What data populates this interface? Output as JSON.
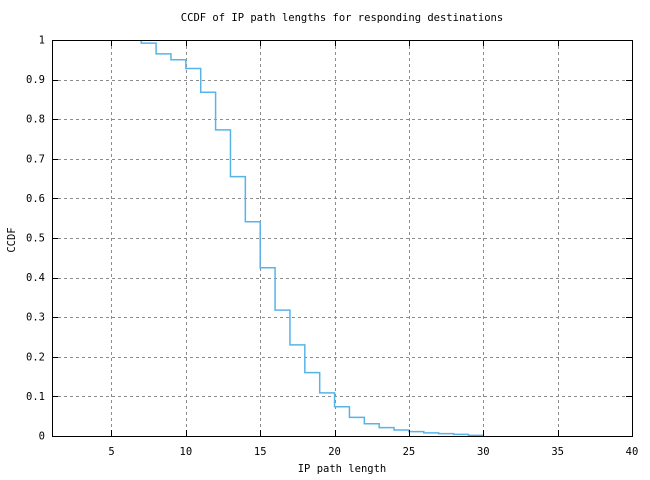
{
  "figure": {
    "background_color": "#ffffff"
  },
  "chart_data": {
    "type": "line",
    "subtype": "step-post-ccdf",
    "title": "CCDF of IP path lengths for responding destinations",
    "xlabel": "IP path length",
    "ylabel": "CCDF",
    "xlim": [
      1,
      40
    ],
    "ylim": [
      0,
      1
    ],
    "xticks": [
      5,
      10,
      15,
      20,
      25,
      30,
      35,
      40
    ],
    "yticks": [
      0,
      0.1,
      0.2,
      0.3,
      0.4,
      0.5,
      0.6,
      0.7,
      0.8,
      0.9,
      1
    ],
    "ytick_labels": [
      "0",
      "0.1",
      "0.2",
      "0.3",
      "0.4",
      "0.5",
      "0.6",
      "0.7",
      "0.8",
      "0.9",
      "1"
    ],
    "grid": true,
    "grid_style": "dashed",
    "legend_position": "none",
    "line_color": "#56b4e9",
    "grid_color": "#8c8c8c",
    "axis_color": "#000000",
    "series": [
      {
        "name": "CCDF of IP path lengths",
        "step_mode": "post",
        "points": [
          {
            "x": 1,
            "y": 1.0
          },
          {
            "x": 7,
            "y": 0.992
          },
          {
            "x": 8,
            "y": 0.965
          },
          {
            "x": 9,
            "y": 0.95
          },
          {
            "x": 10,
            "y": 0.928
          },
          {
            "x": 11,
            "y": 0.868
          },
          {
            "x": 12,
            "y": 0.773
          },
          {
            "x": 13,
            "y": 0.655
          },
          {
            "x": 14,
            "y": 0.541
          },
          {
            "x": 15,
            "y": 0.425
          },
          {
            "x": 16,
            "y": 0.318
          },
          {
            "x": 17,
            "y": 0.23
          },
          {
            "x": 18,
            "y": 0.16
          },
          {
            "x": 19,
            "y": 0.109
          },
          {
            "x": 20,
            "y": 0.074
          },
          {
            "x": 21,
            "y": 0.047
          },
          {
            "x": 22,
            "y": 0.031
          },
          {
            "x": 23,
            "y": 0.021
          },
          {
            "x": 24,
            "y": 0.015
          },
          {
            "x": 25,
            "y": 0.011
          },
          {
            "x": 26,
            "y": 0.008
          },
          {
            "x": 27,
            "y": 0.006
          },
          {
            "x": 28,
            "y": 0.004
          },
          {
            "x": 29,
            "y": 0.0015
          },
          {
            "x": 30,
            "y": 0.0
          }
        ]
      }
    ]
  }
}
